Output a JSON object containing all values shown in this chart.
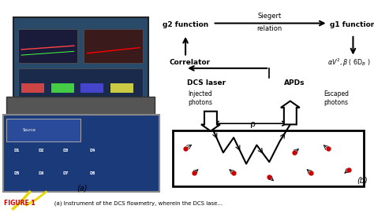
{
  "figure_width": 4.74,
  "figure_height": 2.71,
  "dpi": 100,
  "bg_color": "#ffffff",
  "panel_a_label": "(a)",
  "panel_b_label": "(b)",
  "caption_bold": "FIGURE 1",
  "caption_rest": "   (a) Instrument of the DCS flowmetry, wherein the DCS lase...",
  "diagram": {
    "g2_text": "g2 function",
    "g1_text": "g1 function",
    "siegert_text": "Siegert",
    "relation_text": "relation",
    "correlator_text": "Correlator",
    "dcs_laser_text": "DCS laser",
    "apds_text": "APDs",
    "injected_text": "Injected\nphotons",
    "escaped_text": "Escaped\nphotons",
    "rho_text": "ρ"
  }
}
